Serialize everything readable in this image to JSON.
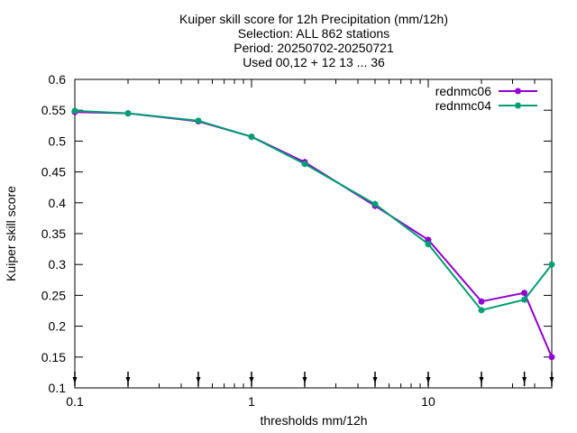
{
  "chart_data": {
    "type": "line",
    "title_lines": [
      "Kuiper skill score  for 12h Precipitation (mm/12h)",
      "Selection: ALL    862 stations",
      "Period: 20250702-20250721",
      "Used 00,12 + 12 13 ... 36"
    ],
    "xlabel": "thresholds mm/12h",
    "ylabel": "Kuiper skill score",
    "x_scale": "log",
    "xlim": [
      0.1,
      50
    ],
    "ylim": [
      0.1,
      0.6
    ],
    "x_ticks": [
      {
        "value": 0.1,
        "label": "0.1"
      },
      {
        "value": 1,
        "label": "1"
      },
      {
        "value": 10,
        "label": "10"
      }
    ],
    "y_ticks": [
      {
        "value": 0.1,
        "label": "0.1"
      },
      {
        "value": 0.15,
        "label": "0.15"
      },
      {
        "value": 0.2,
        "label": "0.2"
      },
      {
        "value": 0.25,
        "label": "0.25"
      },
      {
        "value": 0.3,
        "label": "0.3"
      },
      {
        "value": 0.35,
        "label": "0.35"
      },
      {
        "value": 0.4,
        "label": "0.4"
      },
      {
        "value": 0.45,
        "label": "0.45"
      },
      {
        "value": 0.5,
        "label": "0.5"
      },
      {
        "value": 0.55,
        "label": "0.55"
      },
      {
        "value": 0.6,
        "label": "0.6"
      }
    ],
    "x": [
      0.1,
      0.2,
      0.5,
      1,
      2,
      5,
      10,
      20,
      35,
      50
    ],
    "series": [
      {
        "name": "rednmc06",
        "color": "#9400d3",
        "values": [
          0.547,
          0.545,
          0.532,
          0.507,
          0.466,
          0.395,
          0.34,
          0.24,
          0.254,
          0.15
        ]
      },
      {
        "name": "rednmc04",
        "color": "#009e73",
        "values": [
          0.549,
          0.545,
          0.533,
          0.507,
          0.463,
          0.398,
          0.333,
          0.226,
          0.243,
          0.3
        ]
      }
    ],
    "legend_position": "top-right",
    "grid": false
  }
}
